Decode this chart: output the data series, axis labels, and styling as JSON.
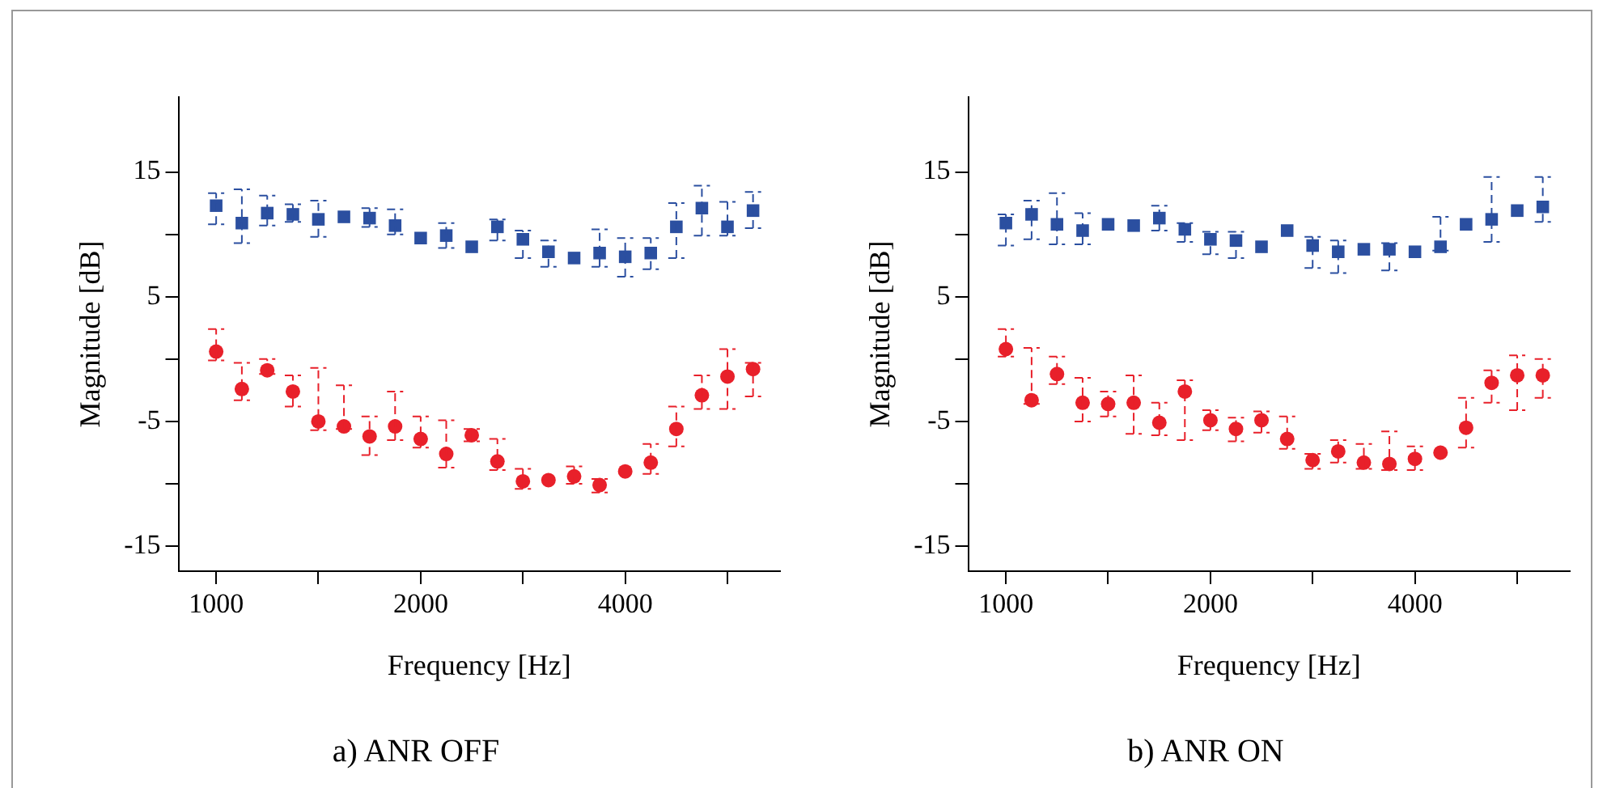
{
  "chart_data": [
    {
      "type": "scatter",
      "title": "a) ANR OFF",
      "xlabel": "Frequency [Hz]",
      "ylabel": "Magnitude [dB]",
      "log": "x",
      "grid": false,
      "legend": false,
      "x": [
        1000,
        1091,
        1189,
        1297,
        1414,
        1542,
        1682,
        1834,
        2000,
        2181,
        2378,
        2594,
        2828,
        3084,
        3364,
        3668,
        4000,
        4362,
        4757,
        5187,
        5657,
        6169
      ],
      "xlim": [
        880,
        6760
      ],
      "xticks": [
        1000,
        {
          "value": 1414,
          "label": null
        },
        2000,
        {
          "value": 2828,
          "label": null
        },
        4000,
        {
          "value": 5657,
          "label": null
        }
      ],
      "ylim": [
        -17,
        21
      ],
      "yticks": [
        15,
        {
          "value": 10,
          "label": null
        },
        5,
        {
          "value": 0,
          "label": null
        },
        -5,
        {
          "value": -10,
          "label": null
        },
        -15
      ],
      "series": [
        {
          "color": "#2b4fa0",
          "marker": "square",
          "values": [
            12.3,
            10.9,
            11.7,
            11.6,
            11.2,
            11.4,
            11.3,
            10.7,
            9.7,
            9.9,
            9.0,
            10.6,
            9.6,
            8.6,
            8.1,
            8.5,
            8.2,
            8.5,
            10.6,
            12.1,
            10.6,
            11.9
          ],
          "errors": [
            [
              10.8,
              13.3
            ],
            [
              9.3,
              13.6
            ],
            [
              10.7,
              13.1
            ],
            [
              11.0,
              12.4
            ],
            [
              9.8,
              12.7
            ],
            null,
            [
              10.6,
              12.1
            ],
            [
              10.0,
              12.0
            ],
            null,
            [
              8.9,
              10.9
            ],
            null,
            [
              9.5,
              11.2
            ],
            [
              8.1,
              10.3
            ],
            [
              7.4,
              9.5
            ],
            null,
            [
              7.4,
              10.4
            ],
            [
              6.6,
              9.7
            ],
            [
              7.2,
              9.7
            ],
            [
              8.1,
              12.5
            ],
            [
              9.9,
              13.9
            ],
            [
              9.9,
              12.6
            ],
            [
              10.5,
              13.4
            ]
          ]
        },
        {
          "color": "#e8202a",
          "marker": "circle",
          "values": [
            0.6,
            -2.4,
            -0.9,
            -2.6,
            -5.0,
            -5.4,
            -6.2,
            -5.4,
            -6.4,
            -7.6,
            -6.1,
            -8.2,
            -9.8,
            -9.7,
            -9.4,
            -10.1,
            -9.0,
            -8.3,
            -5.6,
            -2.9,
            -1.4,
            -0.8
          ],
          "errors": [
            [
              -0.1,
              2.4
            ],
            [
              -3.3,
              -0.3
            ],
            [
              -1.2,
              0.0
            ],
            [
              -3.8,
              -1.3
            ],
            [
              -5.7,
              -0.7
            ],
            [
              -5.6,
              -2.1
            ],
            [
              -7.7,
              -4.6
            ],
            [
              -6.5,
              -2.6
            ],
            [
              -7.1,
              -4.6
            ],
            [
              -8.7,
              -4.9
            ],
            [
              -6.6,
              -5.6
            ],
            [
              -8.9,
              -6.4
            ],
            [
              -10.4,
              -8.8
            ],
            null,
            [
              -10.0,
              -8.6
            ],
            [
              -10.7,
              -9.6
            ],
            null,
            [
              -9.2,
              -6.8
            ],
            [
              -7.0,
              -3.8
            ],
            [
              -4.0,
              -1.3
            ],
            [
              -4.0,
              0.8
            ],
            [
              -3.0,
              -0.3
            ]
          ]
        }
      ]
    },
    {
      "type": "scatter",
      "title": "b) ANR ON",
      "xlabel": "Frequency [Hz]",
      "ylabel": "Magnitude [dB]",
      "log": "x",
      "grid": false,
      "legend": false,
      "x": [
        1000,
        1091,
        1189,
        1297,
        1414,
        1542,
        1682,
        1834,
        2000,
        2181,
        2378,
        2594,
        2828,
        3084,
        3364,
        3668,
        4000,
        4362,
        4757,
        5187,
        5657,
        6169
      ],
      "xlim": [
        880,
        6760
      ],
      "xticks": [
        1000,
        {
          "value": 1414,
          "label": null
        },
        2000,
        {
          "value": 2828,
          "label": null
        },
        4000,
        {
          "value": 5657,
          "label": null
        }
      ],
      "ylim": [
        -17,
        21
      ],
      "yticks": [
        15,
        {
          "value": 10,
          "label": null
        },
        5,
        {
          "value": 0,
          "label": null
        },
        -5,
        {
          "value": -10,
          "label": null
        },
        -15
      ],
      "series": [
        {
          "color": "#2b4fa0",
          "marker": "square",
          "values": [
            10.9,
            11.6,
            10.8,
            10.3,
            10.8,
            10.7,
            11.3,
            10.4,
            9.6,
            9.5,
            9.0,
            10.3,
            9.1,
            8.6,
            8.8,
            8.8,
            8.6,
            9.0,
            10.8,
            11.2,
            11.9,
            12.2
          ],
          "errors": [
            [
              9.1,
              11.6
            ],
            [
              9.6,
              12.7
            ],
            [
              9.2,
              13.3
            ],
            [
              9.2,
              11.7
            ],
            null,
            null,
            [
              10.3,
              12.3
            ],
            [
              9.4,
              10.9
            ],
            [
              8.4,
              10.2
            ],
            [
              8.1,
              10.2
            ],
            null,
            null,
            [
              7.3,
              9.8
            ],
            [
              6.9,
              9.5
            ],
            null,
            [
              7.1,
              9.3
            ],
            null,
            [
              8.7,
              11.4
            ],
            null,
            [
              9.4,
              14.6
            ],
            null,
            [
              11.0,
              14.6
            ]
          ]
        },
        {
          "color": "#e8202a",
          "marker": "circle",
          "values": [
            0.8,
            -3.3,
            -1.2,
            -3.5,
            -3.6,
            -3.5,
            -5.1,
            -2.6,
            -4.9,
            -5.6,
            -4.9,
            -6.4,
            -8.1,
            -7.4,
            -8.3,
            -8.4,
            -8.0,
            -7.5,
            -5.5,
            -1.9,
            -1.3,
            -1.3
          ],
          "errors": [
            [
              0.2,
              2.4
            ],
            [
              -3.6,
              0.9
            ],
            [
              -2.0,
              0.2
            ],
            [
              -5.0,
              -1.5
            ],
            [
              -4.6,
              -2.6
            ],
            [
              -6.0,
              -1.3
            ],
            [
              -6.1,
              -3.5
            ],
            [
              -6.5,
              -1.7
            ],
            [
              -5.7,
              -4.1
            ],
            [
              -6.6,
              -4.7
            ],
            [
              -5.9,
              -4.2
            ],
            [
              -7.2,
              -4.6
            ],
            [
              -8.8,
              -7.6
            ],
            [
              -8.3,
              -6.5
            ],
            [
              -8.8,
              -6.8
            ],
            [
              -8.9,
              -5.8
            ],
            [
              -8.9,
              -7.0
            ],
            null,
            [
              -7.1,
              -3.1
            ],
            [
              -3.5,
              -0.9
            ],
            [
              -4.1,
              0.3
            ],
            [
              -3.1,
              0.0
            ]
          ]
        }
      ]
    }
  ]
}
